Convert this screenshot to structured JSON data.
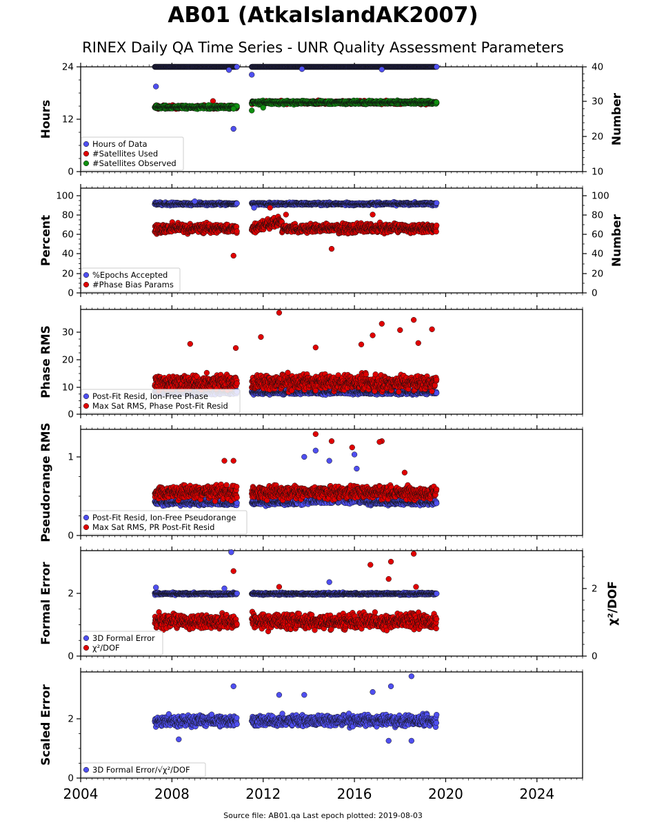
{
  "title": "AB01 (AtkaIslandAK2007)",
  "subtitle": "RINEX Daily QA Time Series - UNR Quality Assessment Parameters",
  "footer": "Source file: AB01.qa Last epoch plotted: 2019-08-03",
  "x_ticks": [
    "2004",
    "2008",
    "2012",
    "2016",
    "2020",
    "2024"
  ],
  "chart_data": [
    {
      "type": "scatter",
      "ylabel": "Hours",
      "y2label": "Number",
      "xlim": [
        2004,
        2026
      ],
      "ylim": [
        0,
        24
      ],
      "y2lim": [
        10,
        40
      ],
      "yticks": [
        "0",
        "12",
        "24"
      ],
      "y2ticks": [
        "10",
        "20",
        "30",
        "40"
      ],
      "legend_position": "lower left",
      "series": [
        {
          "name": "Hours of Data",
          "color": "#4f4ff0",
          "axis": "left",
          "base": 24,
          "spread": 0.3,
          "outliers": [
            [
              2007.3,
              19.5
            ],
            [
              2010.5,
              23.3
            ],
            [
              2010.7,
              9.8
            ],
            [
              2011.5,
              22.2
            ],
            [
              2013.7,
              23.5
            ],
            [
              2017.2,
              23.4
            ]
          ]
        },
        {
          "name": "#Satellites Used",
          "color": "#e00000",
          "axis": "right",
          "base": 30,
          "spread": 1,
          "outliers": [
            [
              2009.8,
              30.2
            ]
          ]
        },
        {
          "name": "#Satellites Observed",
          "color": "#0f8f0f",
          "axis": "right",
          "base": 30,
          "spread": 1,
          "outliers": [
            [
              2010.7,
              28.0
            ],
            [
              2011.5,
              27.5
            ],
            [
              2012.0,
              28.3
            ]
          ]
        }
      ]
    },
    {
      "type": "scatter",
      "ylabel": "Percent",
      "y2label": "Number",
      "xlim": [
        2004,
        2026
      ],
      "ylim": [
        0,
        107
      ],
      "yticks": [
        "0",
        "20",
        "40",
        "60",
        "80",
        "100"
      ],
      "y2ticks": [
        "0",
        "20",
        "40",
        "60",
        "80",
        "100"
      ],
      "legend_position": "lower left",
      "series": [
        {
          "name": "%Epochs Accepted",
          "color": "#4f4ff0",
          "base": 91,
          "spread": 2,
          "outliers": [
            [
              2009.0,
              93.5
            ],
            [
              2011.6,
              87
            ]
          ]
        },
        {
          "name": "#Phase Bias Params",
          "color": "#e00000",
          "base": 66,
          "spread": 7,
          "outliers": [
            [
              2010.7,
              38
            ],
            [
              2015.0,
              45
            ],
            [
              2012.3,
              87
            ],
            [
              2013.0,
              80
            ],
            [
              2016.8,
              80
            ]
          ]
        }
      ]
    },
    {
      "type": "scatter",
      "ylabel": "Phase RMS",
      "xlim": [
        2004,
        2026
      ],
      "ylim": [
        0,
        38
      ],
      "yticks": [
        "0",
        "10",
        "20",
        "30"
      ],
      "legend_position": "lower left",
      "series": [
        {
          "name": "Post-Fit Resid, Ion-Free Phase",
          "color": "#4f4ff0",
          "base": 8,
          "spread": 1.2,
          "outliers": []
        },
        {
          "name": "Max Sat RMS, Phase Post-Fit Resid",
          "color": "#e00000",
          "base": 11.5,
          "spread": 4,
          "outliers": [
            [
              2012.7,
              36.8
            ],
            [
              2017.2,
              32.8
            ],
            [
              2018.6,
              34.2
            ],
            [
              2018.0,
              30.5
            ],
            [
              2019.4,
              30.8
            ],
            [
              2016.8,
              28.6
            ],
            [
              2008.8,
              25.5
            ],
            [
              2011.9,
              28.0
            ],
            [
              2014.3,
              24.2
            ],
            [
              2010.8,
              24.0
            ],
            [
              2016.3,
              25.3
            ],
            [
              2018.8,
              25.8
            ]
          ]
        }
      ]
    },
    {
      "type": "scatter",
      "ylabel": "Pseudorange RMS",
      "xlim": [
        2004,
        2026
      ],
      "ylim": [
        0,
        1.35
      ],
      "yticks": [
        "0",
        "1"
      ],
      "legend_position": "lower left",
      "series": [
        {
          "name": "Post-Fit Resid, Ion-Free Pseudorange",
          "color": "#4f4ff0",
          "base": 0.42,
          "spread": 0.05,
          "outliers": [
            [
              2013.8,
              1.0
            ],
            [
              2014.3,
              1.08
            ],
            [
              2014.9,
              0.95
            ],
            [
              2016.0,
              1.03
            ],
            [
              2016.1,
              0.85
            ]
          ]
        },
        {
          "name": "Max Sat RMS, PR Post-Fit Resid",
          "color": "#e00000",
          "base": 0.55,
          "spread": 0.12,
          "outliers": [
            [
              2014.3,
              1.29
            ],
            [
              2015.0,
              1.2
            ],
            [
              2017.2,
              1.2
            ],
            [
              2017.1,
              1.19
            ],
            [
              2015.9,
              1.12
            ],
            [
              2010.3,
              0.95
            ],
            [
              2010.7,
              0.95
            ],
            [
              2018.2,
              0.8
            ]
          ]
        }
      ]
    },
    {
      "type": "scatter",
      "ylabel": "Formal Error",
      "y2label": "χ²/DOF",
      "xlim": [
        2004,
        2026
      ],
      "ylim": [
        0,
        3.35
      ],
      "yticks": [
        "0",
        "2"
      ],
      "y2ticks": [
        "0",
        "2"
      ],
      "legend_position": "lower left",
      "series": [
        {
          "name": "3D Formal Error",
          "color": "#4f4ff0",
          "base": 1.98,
          "spread": 0.05,
          "outliers": [
            [
              2010.6,
              3.3
            ],
            [
              2014.9,
              2.35
            ],
            [
              2007.3,
              2.18
            ],
            [
              2010.3,
              2.15
            ]
          ]
        },
        {
          "name": "χ²/DOF",
          "color": "#e00000",
          "base": 1.1,
          "spread": 0.35,
          "outliers": [
            [
              2018.6,
              3.25
            ],
            [
              2017.6,
              3.0
            ],
            [
              2016.7,
              2.9
            ],
            [
              2010.7,
              2.7
            ],
            [
              2017.5,
              2.45
            ],
            [
              2018.7,
              2.2
            ],
            [
              2012.7,
              2.2
            ]
          ]
        }
      ]
    },
    {
      "type": "scatter",
      "ylabel": "Scaled Error",
      "xlim": [
        2004,
        2026
      ],
      "ylim": [
        0,
        3.7
      ],
      "yticks": [
        "0",
        "2"
      ],
      "legend_position": "lower left",
      "series": [
        {
          "name": "3D Formal Error/√χ²/DOF",
          "color": "#4f4ff0",
          "base": 2.0,
          "spread": 0.28,
          "outliers": [
            [
              2018.5,
              3.55
            ],
            [
              2010.7,
              3.2
            ],
            [
              2017.6,
              3.2
            ],
            [
              2013.8,
              2.9
            ],
            [
              2012.7,
              2.9
            ],
            [
              2016.8,
              3.0
            ],
            [
              2008.3,
              1.35
            ],
            [
              2017.5,
              1.3
            ],
            [
              2018.5,
              1.3
            ]
          ]
        }
      ]
    }
  ]
}
